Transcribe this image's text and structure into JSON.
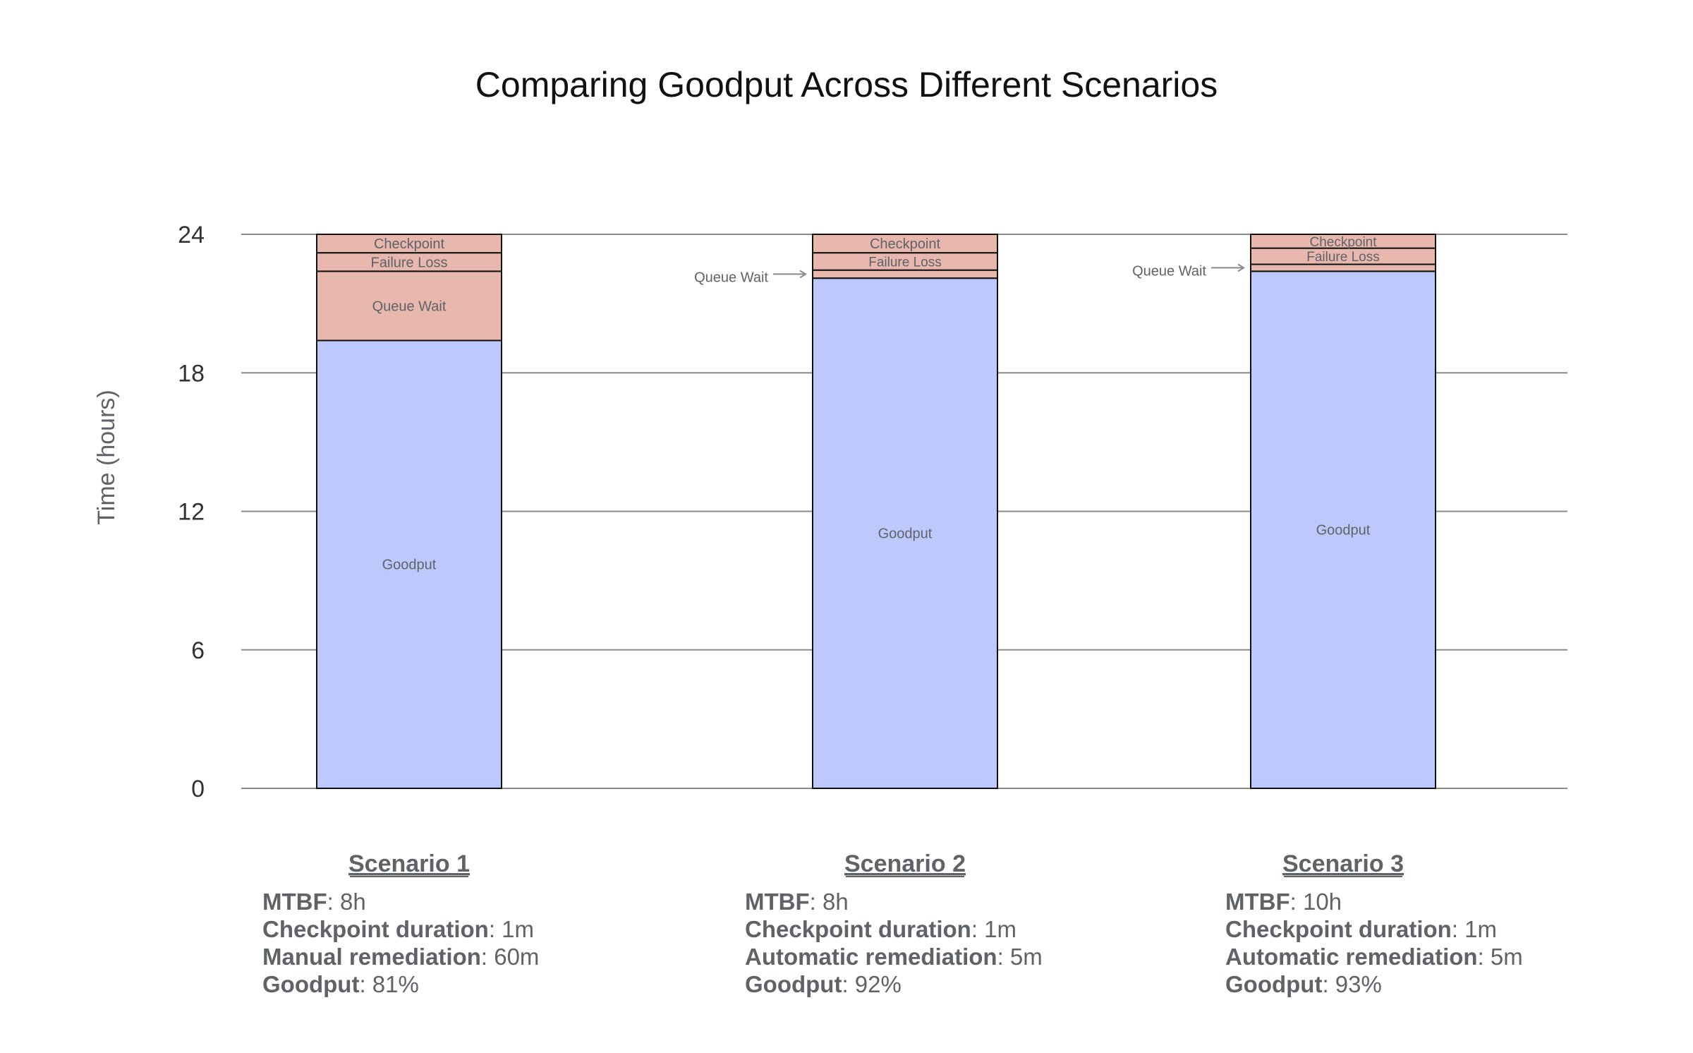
{
  "chart_data": {
    "type": "bar",
    "stacked": true,
    "title": "Comparing Goodput Across Different Scenarios",
    "xlabel": "",
    "ylabel": "Time (hours)",
    "ylim": [
      0,
      24
    ],
    "yticks": [
      0,
      6,
      12,
      18,
      24
    ],
    "grid": true,
    "categories": [
      "Scenario 1",
      "Scenario 2",
      "Scenario 3"
    ],
    "series": [
      {
        "name": "Goodput",
        "color": "#bdc8fd",
        "values": [
          19.4,
          22.1,
          22.4
        ]
      },
      {
        "name": "Queue Wait",
        "color": "#e8b7ae",
        "values": [
          3.0,
          0.35,
          0.3
        ]
      },
      {
        "name": "Failure Loss",
        "color": "#e8b7ae",
        "values": [
          0.8,
          0.75,
          0.7
        ]
      },
      {
        "name": "Checkpoint",
        "color": "#e8b7ae",
        "values": [
          0.8,
          0.8,
          0.6
        ]
      }
    ],
    "annotations": [
      {
        "text": "Queue Wait",
        "category": "Scenario 2",
        "series": "Queue Wait"
      },
      {
        "text": "Queue Wait",
        "category": "Scenario 3",
        "series": "Queue Wait"
      }
    ]
  },
  "scenarios": [
    {
      "title": "Scenario 1",
      "lines": [
        {
          "key": "MTBF",
          "value": ": 8h"
        },
        {
          "key": "Checkpoint duration",
          "value": ": 1m"
        },
        {
          "key": "Manual remediation",
          "value": ": 60m"
        },
        {
          "key": "Goodput",
          "value": ": 81%"
        }
      ]
    },
    {
      "title": "Scenario 2",
      "lines": [
        {
          "key": "MTBF",
          "value": ": 8h"
        },
        {
          "key": "Checkpoint duration",
          "value": ": 1m"
        },
        {
          "key": "Automatic remediation",
          "value": ": 5m"
        },
        {
          "key": "Goodput",
          "value": ": 92%"
        }
      ]
    },
    {
      "title": "Scenario 3",
      "lines": [
        {
          "key": "MTBF",
          "value": ": 10h"
        },
        {
          "key": "Checkpoint duration",
          "value": ": 1m"
        },
        {
          "key": "Automatic remediation",
          "value": ": 5m"
        },
        {
          "key": "Goodput",
          "value": ": 93%"
        }
      ]
    }
  ]
}
